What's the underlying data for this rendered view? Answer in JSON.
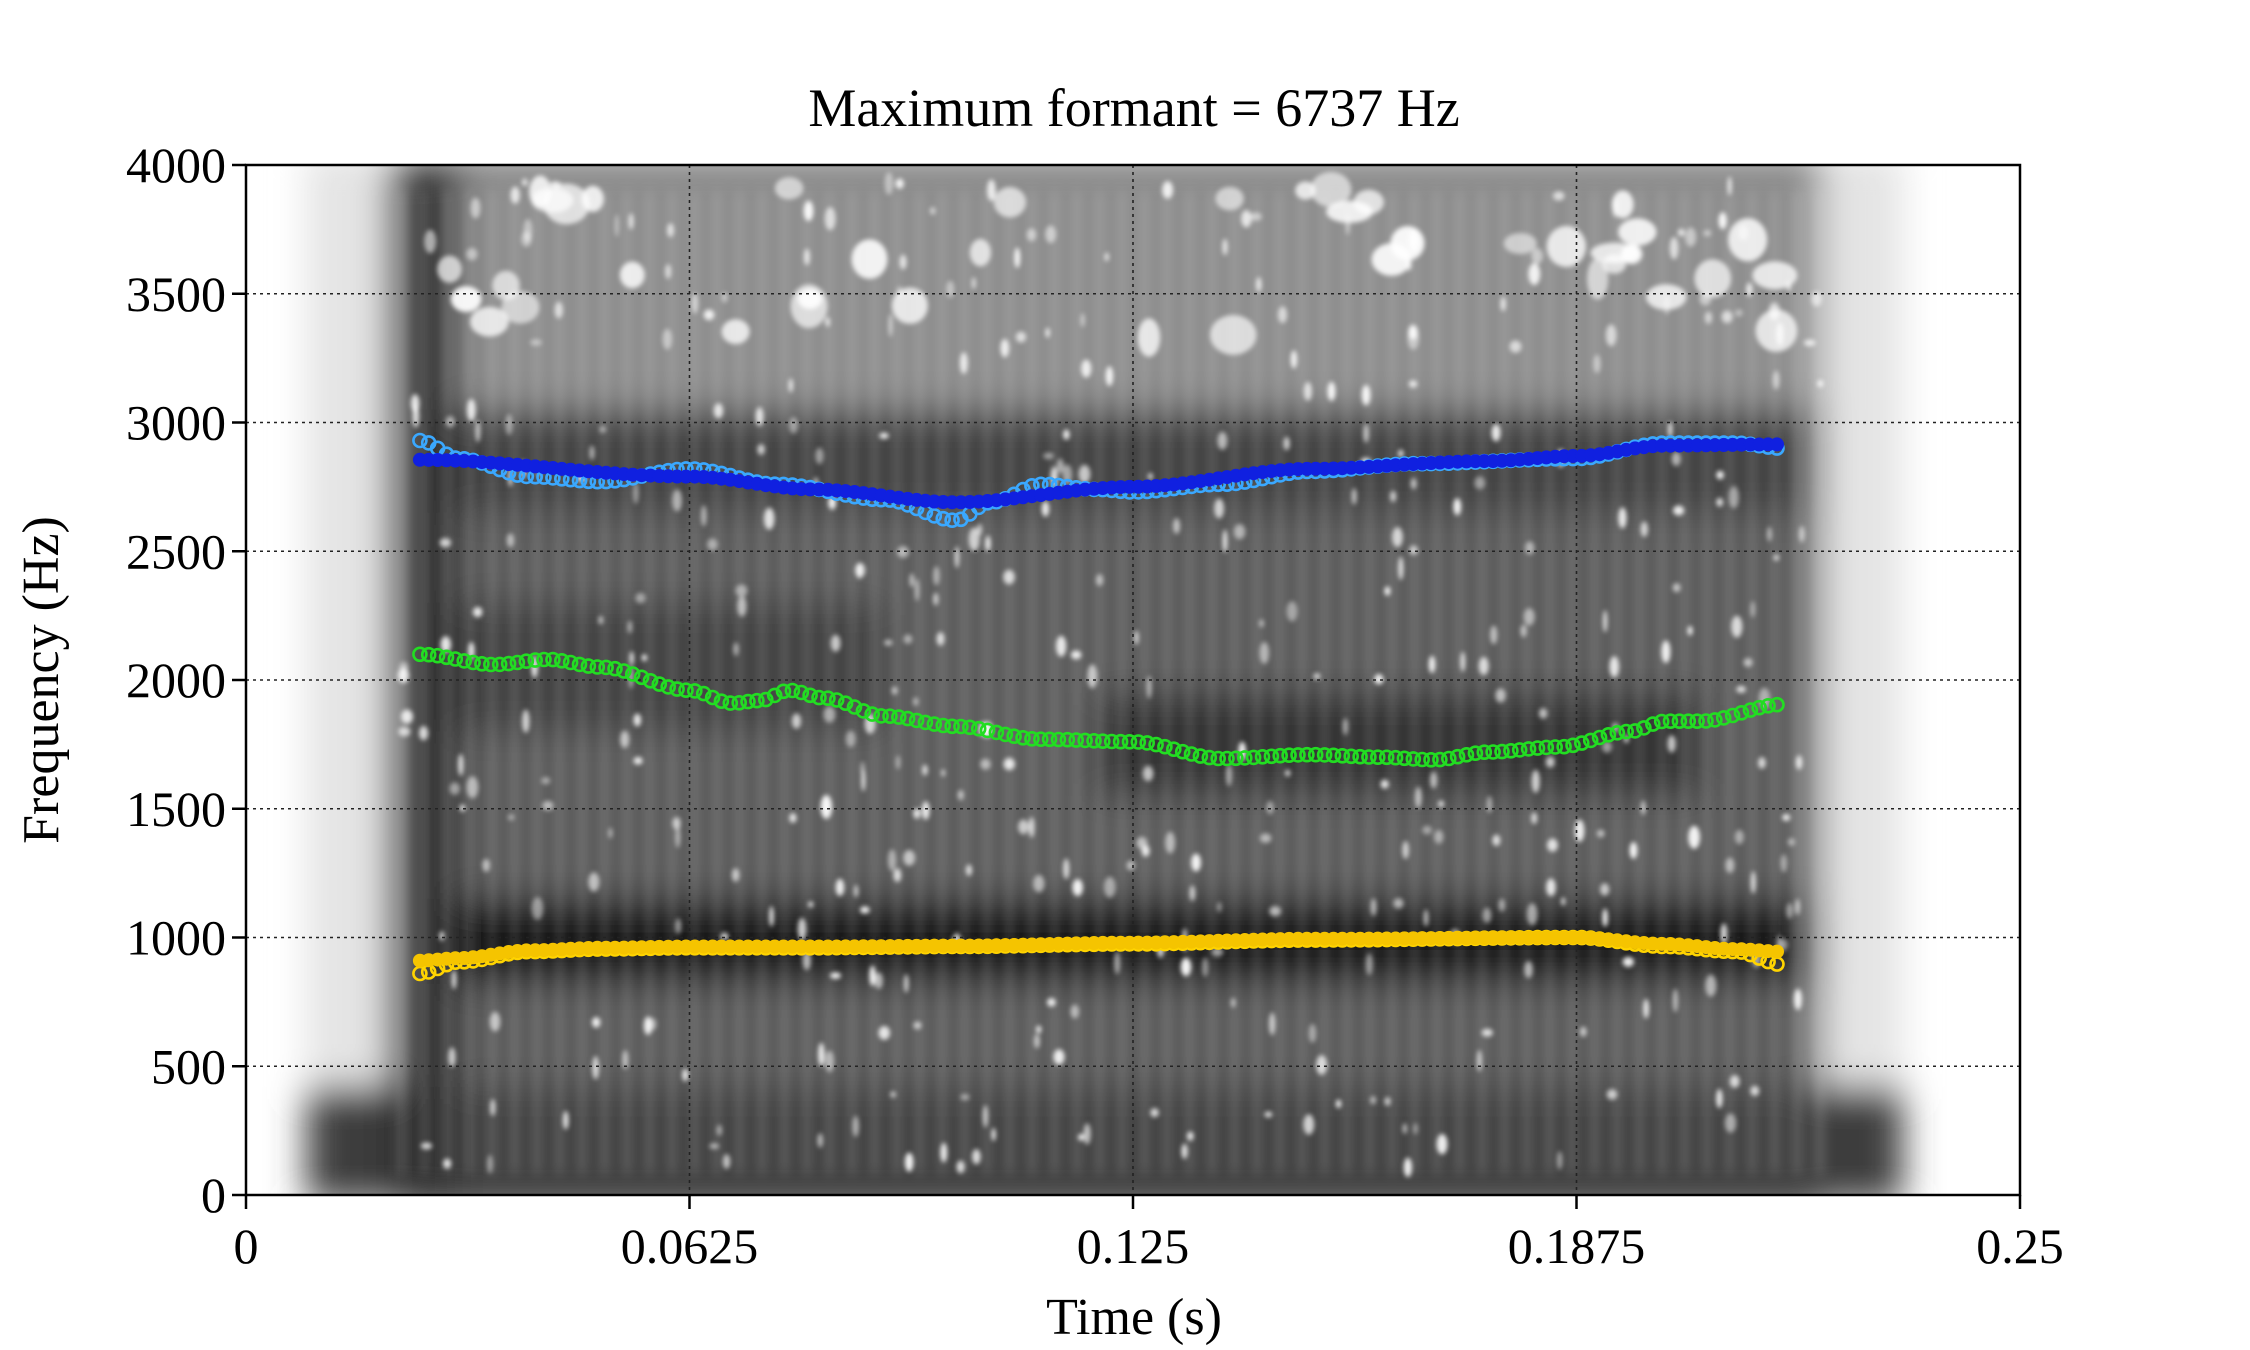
{
  "chart_data": {
    "type": "scatter",
    "subtype": "spectrogram-with-formant-tracks",
    "title": "Maximum formant = 6737 Hz",
    "xlabel": "Time (s)",
    "ylabel": "Frequency (Hz)",
    "xlim": [
      0,
      0.25
    ],
    "ylim": [
      0,
      4000
    ],
    "x_ticks": [
      0,
      0.0625,
      0.125,
      0.1875,
      0.25
    ],
    "x_tick_labels": [
      "0",
      "0.0625",
      "0.125",
      "0.1875",
      "0.25"
    ],
    "y_ticks": [
      0,
      500,
      1000,
      1500,
      2000,
      2500,
      3000,
      3500,
      4000
    ],
    "y_tick_labels": [
      "0",
      "500",
      "1000",
      "1500",
      "2000",
      "2500",
      "3000",
      "3500",
      "4000"
    ],
    "grid": true,
    "background": "grayscale spectrogram",
    "series": [
      {
        "color": "#ffd400",
        "marker": "open-circle",
        "x": [
          0.0245,
          0.03,
          0.04,
          0.05,
          0.0625,
          0.08,
          0.1,
          0.125,
          0.15,
          0.1875,
          0.2,
          0.21,
          0.2165
        ],
        "values": [
          860,
          905,
          945,
          955,
          960,
          960,
          965,
          975,
          990,
          1000,
          965,
          945,
          895
        ]
      },
      {
        "color": "#f5c400",
        "marker": "filled-circle",
        "x": [
          0.0245,
          0.03,
          0.04,
          0.05,
          0.0625,
          0.08,
          0.1,
          0.125,
          0.15,
          0.1875,
          0.2,
          0.21,
          0.2165
        ],
        "values": [
          910,
          920,
          950,
          960,
          965,
          965,
          968,
          980,
          995,
          1000,
          975,
          955,
          945
        ]
      },
      {
        "color": "#22dd22",
        "marker": "open-circle",
        "x": [
          0.0245,
          0.035,
          0.0425,
          0.05,
          0.0625,
          0.0685,
          0.0725,
          0.0765,
          0.0815,
          0.09,
          0.1,
          0.112,
          0.125,
          0.1375,
          0.15,
          0.16,
          0.1675,
          0.175,
          0.185,
          0.195,
          0.2,
          0.205,
          0.2165
        ],
        "values": [
          2100,
          2060,
          2080,
          2050,
          1960,
          1910,
          1920,
          1960,
          1930,
          1860,
          1820,
          1770,
          1760,
          1695,
          1710,
          1700,
          1690,
          1720,
          1740,
          1800,
          1840,
          1840,
          1905
        ]
      },
      {
        "color": "#3aa8ff",
        "marker": "open-circle",
        "x": [
          0.0245,
          0.03,
          0.04,
          0.05,
          0.0625,
          0.075,
          0.09,
          0.1,
          0.105,
          0.112,
          0.12,
          0.125,
          0.1375,
          0.15,
          0.165,
          0.1875,
          0.2,
          0.21,
          0.2165
        ],
        "values": [
          2930,
          2860,
          2790,
          2770,
          2820,
          2760,
          2700,
          2620,
          2690,
          2760,
          2740,
          2730,
          2760,
          2810,
          2840,
          2860,
          2920,
          2920,
          2900
        ]
      },
      {
        "color": "#1020e0",
        "marker": "filled-circle",
        "x": [
          0.0245,
          0.0625,
          0.08,
          0.1,
          0.125,
          0.15,
          0.175,
          0.1875,
          0.2,
          0.2165
        ],
        "values": [
          2855,
          2790,
          2740,
          2690,
          2750,
          2820,
          2850,
          2870,
          2910,
          2915
        ]
      }
    ]
  }
}
